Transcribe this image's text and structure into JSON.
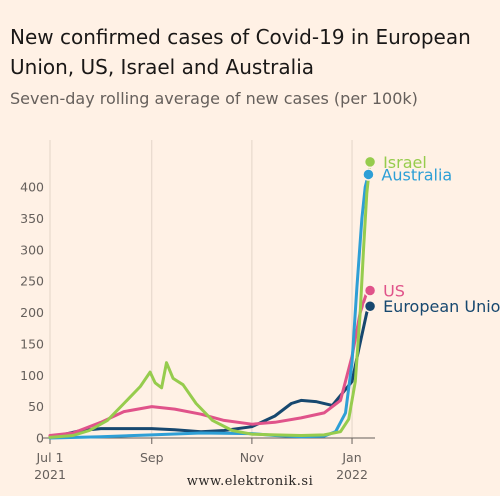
{
  "watermark": "www.elektronik.si",
  "chart_data": {
    "type": "line",
    "title": "New confirmed cases of Covid-19 in European Union, US, Israel and Australia",
    "subtitle": "Seven-day rolling average of new cases (per 100k)",
    "ylim": [
      0,
      400
    ],
    "yticks": [
      0,
      50,
      100,
      150,
      200,
      250,
      300,
      350,
      400
    ],
    "xlim": [
      "2021-07-01",
      "2022-01-15"
    ],
    "xticks": [
      {
        "date": "2021-07-01",
        "label": "Jul 1",
        "sublabel": "2021"
      },
      {
        "date": "2021-09-01",
        "label": "Sep",
        "sublabel": ""
      },
      {
        "date": "2021-11-01",
        "label": "Nov",
        "sublabel": ""
      },
      {
        "date": "2022-01-01",
        "label": "Jan",
        "sublabel": "2022"
      }
    ],
    "grid": "vertical",
    "series": [
      {
        "name": "Israel",
        "color": "#96cc4d",
        "x": [
          "2021-07-01",
          "2021-07-15",
          "2021-07-25",
          "2021-08-05",
          "2021-08-15",
          "2021-08-25",
          "2021-08-31",
          "2021-09-03",
          "2021-09-07",
          "2021-09-10",
          "2021-09-14",
          "2021-09-20",
          "2021-09-28",
          "2021-10-08",
          "2021-10-20",
          "2021-11-01",
          "2021-11-15",
          "2021-12-01",
          "2021-12-15",
          "2021-12-25",
          "2021-12-30",
          "2022-01-03",
          "2022-01-06",
          "2022-01-08",
          "2022-01-10",
          "2022-01-12"
        ],
        "y": [
          1,
          4,
          12,
          28,
          55,
          82,
          105,
          88,
          80,
          120,
          95,
          85,
          55,
          28,
          12,
          6,
          5,
          4,
          5,
          10,
          30,
          90,
          200,
          300,
          390,
          440
        ]
      },
      {
        "name": "Australia",
        "color": "#2e9fd6",
        "x": [
          "2021-07-01",
          "2021-08-01",
          "2021-09-01",
          "2021-10-01",
          "2021-11-01",
          "2021-11-15",
          "2021-12-01",
          "2021-12-15",
          "2021-12-22",
          "2021-12-28",
          "2022-01-01",
          "2022-01-04",
          "2022-01-07",
          "2022-01-09",
          "2022-01-11"
        ],
        "y": [
          0,
          2,
          5,
          8,
          7,
          4,
          2,
          3,
          10,
          40,
          120,
          240,
          350,
          400,
          420
        ]
      },
      {
        "name": "US",
        "color": "#e0538a",
        "x": [
          "2021-07-01",
          "2021-07-15",
          "2021-08-01",
          "2021-08-15",
          "2021-09-01",
          "2021-09-15",
          "2021-10-01",
          "2021-10-15",
          "2021-11-01",
          "2021-11-15",
          "2021-12-01",
          "2021-12-15",
          "2021-12-25",
          "2022-01-01",
          "2022-01-06",
          "2022-01-10",
          "2022-01-12"
        ],
        "y": [
          4,
          8,
          25,
          42,
          50,
          46,
          38,
          28,
          22,
          25,
          32,
          40,
          60,
          130,
          200,
          232,
          235
        ]
      },
      {
        "name": "European Union",
        "color": "#17486f",
        "x": [
          "2021-07-01",
          "2021-07-10",
          "2021-07-20",
          "2021-08-01",
          "2021-08-15",
          "2021-09-01",
          "2021-09-15",
          "2021-10-01",
          "2021-10-15",
          "2021-11-01",
          "2021-11-15",
          "2021-11-25",
          "2021-12-01",
          "2021-12-10",
          "2021-12-20",
          "2022-01-01",
          "2022-01-05",
          "2022-01-10",
          "2022-01-12"
        ],
        "y": [
          3,
          6,
          12,
          15,
          15,
          15,
          13,
          10,
          12,
          18,
          35,
          55,
          60,
          58,
          52,
          90,
          140,
          200,
          210
        ]
      }
    ]
  }
}
